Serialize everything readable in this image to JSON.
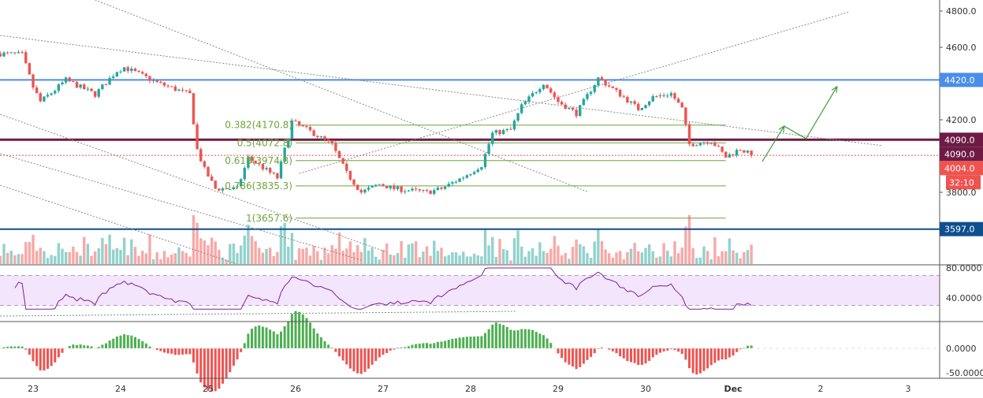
{
  "chart_data": {
    "type": "candlestick",
    "symbol_interval": "1h",
    "price_axis": {
      "ticks": [
        "4800.0",
        "4600.0",
        "4200.0",
        "3800.0"
      ],
      "tick_values": [
        4800,
        4600,
        4200,
        3800
      ],
      "range": [
        3350,
        4860
      ]
    },
    "price_tags": [
      {
        "label": "4420.0",
        "value": 4420,
        "color": "#4a8ee8"
      },
      {
        "label": "4090.0",
        "value": 4090,
        "color": "#6d1b45"
      },
      {
        "label": "4090.0",
        "value": 4090,
        "color": "#6d1b45",
        "offset": 1
      },
      {
        "label": "4004.0",
        "value": 4004,
        "color": "#ef5350"
      },
      {
        "label": "32:10",
        "value": 4004,
        "color": "#ef5350",
        "offset": 1
      },
      {
        "label": "3597.0",
        "value": 3597,
        "color": "#0e4f8f"
      }
    ],
    "time_axis": [
      {
        "label": "23",
        "t": "11-23 00:00"
      },
      {
        "label": "24",
        "t": "11-24 00:00"
      },
      {
        "label": "25",
        "t": "11-25 00:00"
      },
      {
        "label": "26",
        "t": "11-26 00:00"
      },
      {
        "label": "27",
        "t": "11-27 00:00"
      },
      {
        "label": "28",
        "t": "11-28 00:00"
      },
      {
        "label": "29",
        "t": "11-29 00:00"
      },
      {
        "label": "30",
        "t": "11-30 00:00"
      },
      {
        "label": "Dec",
        "t": "12-01 00:00"
      },
      {
        "label": "2",
        "t": "12-02 00:00"
      },
      {
        "label": "3",
        "t": "12-03 00:00"
      }
    ],
    "price_path": [
      [
        "11-22 15:00",
        4565
      ],
      [
        "11-22 21:00",
        4560
      ],
      [
        "11-23 00:00",
        4380
      ],
      [
        "11-23 02:00",
        4300
      ],
      [
        "11-23 06:00",
        4365
      ],
      [
        "11-23 09:00",
        4420
      ],
      [
        "11-23 17:00",
        4340
      ],
      [
        "11-23 23:00",
        4470
      ],
      [
        "11-24 01:00",
        4490
      ],
      [
        "11-24 10:00",
        4405
      ],
      [
        "11-24 19:00",
        4340
      ],
      [
        "11-24 21:00",
        4035
      ],
      [
        "11-24 23:00",
        3925
      ],
      [
        "11-25 02:00",
        3820
      ],
      [
        "11-25 08:00",
        3820
      ],
      [
        "11-25 11:00",
        3990
      ],
      [
        "11-25 14:00",
        3950
      ],
      [
        "11-25 19:00",
        3880
      ],
      [
        "11-25 21:00",
        4035
      ],
      [
        "11-25 23:00",
        4190
      ],
      [
        "11-26 05:00",
        4125
      ],
      [
        "11-26 10:00",
        4060
      ],
      [
        "11-26 14:00",
        3905
      ],
      [
        "11-26 18:00",
        3800
      ],
      [
        "11-26 23:00",
        3845
      ],
      [
        "11-27 03:00",
        3820
      ],
      [
        "11-27 12:00",
        3800
      ],
      [
        "11-27 16:00",
        3820
      ],
      [
        "11-27 22:00",
        3885
      ],
      [
        "11-28 03:00",
        3950
      ],
      [
        "11-28 06:00",
        4125
      ],
      [
        "11-28 11:00",
        4145
      ],
      [
        "11-28 14:00",
        4275
      ],
      [
        "11-28 20:00",
        4405
      ],
      [
        "11-29 00:00",
        4300
      ],
      [
        "11-29 05:00",
        4235
      ],
      [
        "11-29 11:00",
        4430
      ],
      [
        "11-29 18:00",
        4325
      ],
      [
        "11-29 22:00",
        4260
      ],
      [
        "11-30 02:00",
        4325
      ],
      [
        "11-30 07:00",
        4345
      ],
      [
        "11-30 10:00",
        4260
      ],
      [
        "11-30 12:00",
        4065
      ],
      [
        "11-30 18:00",
        4085
      ],
      [
        "11-30 22:00",
        3995
      ],
      [
        "12-01 02:00",
        4040
      ],
      [
        "12-01 05:00",
        4004
      ]
    ],
    "colors": {
      "up": "#26a69a",
      "down": "#ef5350"
    },
    "fibonacci": {
      "start": "11-26 00:00",
      "end": "11-30 22:00",
      "color": "#6ea43a",
      "levels": [
        {
          "label": "0.382(4170.8)",
          "value": 4170.8
        },
        {
          "label": "0.5(4072.8)",
          "value": 4072.8
        },
        {
          "label": "0.618(3974.8)",
          "value": 3974.8
        },
        {
          "label": "0.786(3835.3)",
          "value": 3835.3
        },
        {
          "label": "1(3657.6)",
          "value": 3657.6
        }
      ]
    },
    "horizontal_lines": [
      {
        "value": 4420,
        "color": "#4a8ee8"
      },
      {
        "value": 4090,
        "color": "#6d1b45"
      },
      {
        "value": 3597,
        "color": "#0e4f8f"
      }
    ],
    "current_price": 4004,
    "trendlines": [
      [
        [
          "11-23 17:00",
          4861
        ],
        [
          "11-29 08:00",
          3804
        ]
      ],
      [
        [
          "11-22 15:00",
          4665
        ],
        [
          "12-02 17:00",
          4057
        ]
      ],
      [
        [
          "11-26 01:00",
          3904
        ],
        [
          "12-02 08:00",
          4796
        ]
      ],
      [
        [
          "11-22 15:00",
          4230
        ],
        [
          "11-27 01:00",
          3470
        ]
      ],
      [
        [
          "11-22 15:00",
          4013
        ],
        [
          "11-26 18:00",
          3426
        ]
      ],
      [
        [
          "11-22 15:00",
          3839
        ],
        [
          "11-25 08:00",
          3404
        ]
      ]
    ],
    "projection_arrow": [
      [
        "12-01 08:00",
        3970
      ],
      [
        "12-01 14:00",
        4165
      ],
      [
        "12-01 20:00",
        4096
      ],
      [
        "12-02 04:30",
        4383
      ]
    ],
    "rsi": {
      "ticks": [
        "80.0000",
        "40.0000"
      ],
      "tick_values": [
        80,
        40
      ],
      "bands": [
        70,
        30
      ],
      "period": 14,
      "color": "#7b1fa2"
    },
    "macd": {
      "ticks": [
        "0.0000",
        "-50.0000"
      ],
      "tick_values": [
        0,
        -50
      ]
    }
  }
}
